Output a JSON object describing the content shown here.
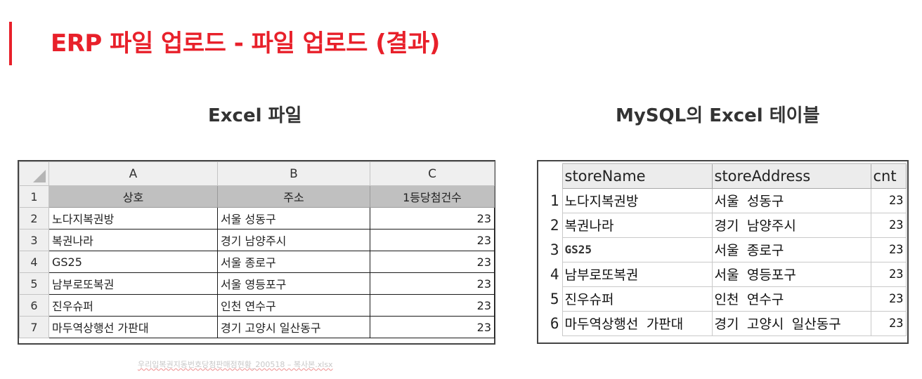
{
  "title": "ERP 파일 업로드 - 파일 업로드 (결과)",
  "excel_section": {
    "title": "Excel 파일",
    "columns": [
      "A",
      "B",
      "C"
    ],
    "row_numbers": [
      "1",
      "2",
      "3",
      "4",
      "5",
      "6",
      "7"
    ],
    "headers": [
      "상호",
      "주소",
      "1등당첨건수"
    ],
    "rows": [
      [
        "노다지복권방",
        "서울 성동구",
        "23"
      ],
      [
        "복권나라",
        "경기 남양주시",
        "23"
      ],
      [
        "GS25",
        "서울 종로구",
        "23"
      ],
      [
        "남부로또복권",
        "서울 영등포구",
        "23"
      ],
      [
        "진우슈퍼",
        "인천 연수구",
        "23"
      ],
      [
        "마두역상행선 가판대",
        "경기 고양시 일산동구",
        "23"
      ]
    ],
    "filename": "우리입복권지동번호당첨판매점현황_200518 – 복사본.xlsx"
  },
  "mysql_section": {
    "title": "MySQL의 Excel 테이블",
    "columns": [
      "storeName",
      "storeAddress",
      "cnt"
    ],
    "row_numbers": [
      "1",
      "2",
      "3",
      "4",
      "5",
      "6"
    ],
    "rows": [
      [
        "노다지복권방",
        "서울 성동구",
        "23"
      ],
      [
        "복권나라",
        "경기 남양주시",
        "23"
      ],
      [
        "GS25",
        "서울 종로구",
        "23"
      ],
      [
        "남부로또복권",
        "서울 영등포구",
        "23"
      ],
      [
        "진우슈퍼",
        "인천 연수구",
        "23"
      ],
      [
        "마두역상행선 가판대",
        "경기 고양시 일산동구",
        "23"
      ]
    ]
  },
  "colors": {
    "accent": "#e8202a",
    "section_title": "#333333"
  }
}
